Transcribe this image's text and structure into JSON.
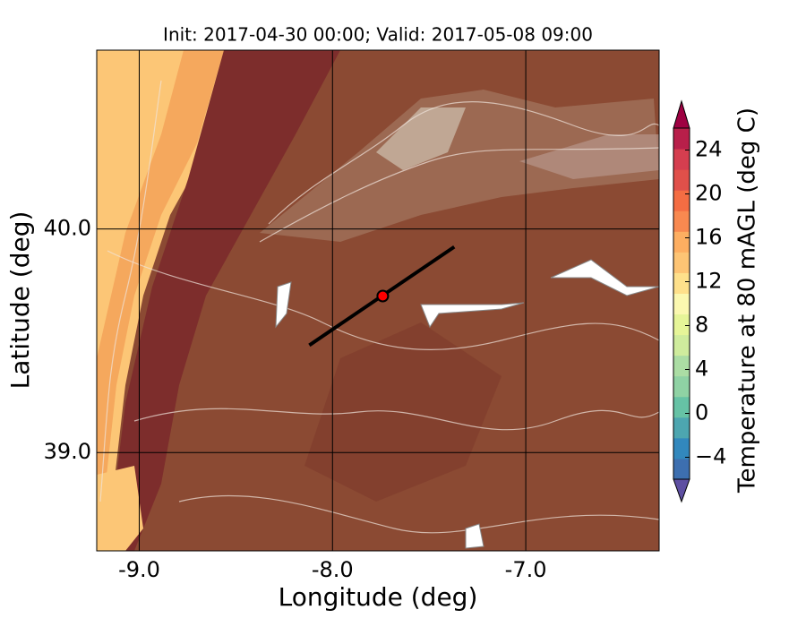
{
  "chart_data": {
    "type": "map",
    "title": "Init: 2017-04-30 00:00; Valid: 2017-05-08 09:00",
    "xlabel": "Longitude (deg)",
    "ylabel": "Latitude (deg)",
    "xlim": [
      -9.22,
      -6.31
    ],
    "ylim": [
      38.56,
      40.8
    ],
    "xticks": [
      {
        "value": -9,
        "label": "-9.0"
      },
      {
        "value": -8,
        "label": "-8.0"
      },
      {
        "value": -7,
        "label": "-7.0"
      }
    ],
    "yticks": [
      {
        "value": 39,
        "label": "39.0"
      },
      {
        "value": 40,
        "label": "40.0"
      }
    ],
    "grid": true,
    "transect": {
      "lon": [
        -8.12,
        -7.37
      ],
      "lat": [
        39.48,
        39.92
      ],
      "color": "#000000"
    },
    "point": {
      "lon": -7.74,
      "lat": 39.7,
      "color": "#ff0000"
    },
    "colorbar": {
      "label": "Temperature at 80 mAGL (deg C)",
      "clim": [
        -6,
        26
      ],
      "ticks": [
        {
          "value": -4,
          "label": "−4"
        },
        0,
        4,
        8,
        12,
        16,
        20,
        24
      ],
      "colors": [
        "#5e4fa2",
        "#3d6fb0",
        "#3288bd",
        "#4da6b0",
        "#66c2a5",
        "#8fd2a4",
        "#abdda4",
        "#cfec9d",
        "#e6f598",
        "#fbf8b0",
        "#fee08b",
        "#fdc474",
        "#fdae61",
        "#f88950",
        "#f46d43",
        "#e0504a",
        "#d53e4f",
        "#b81f4a",
        "#9e0142"
      ]
    }
  }
}
